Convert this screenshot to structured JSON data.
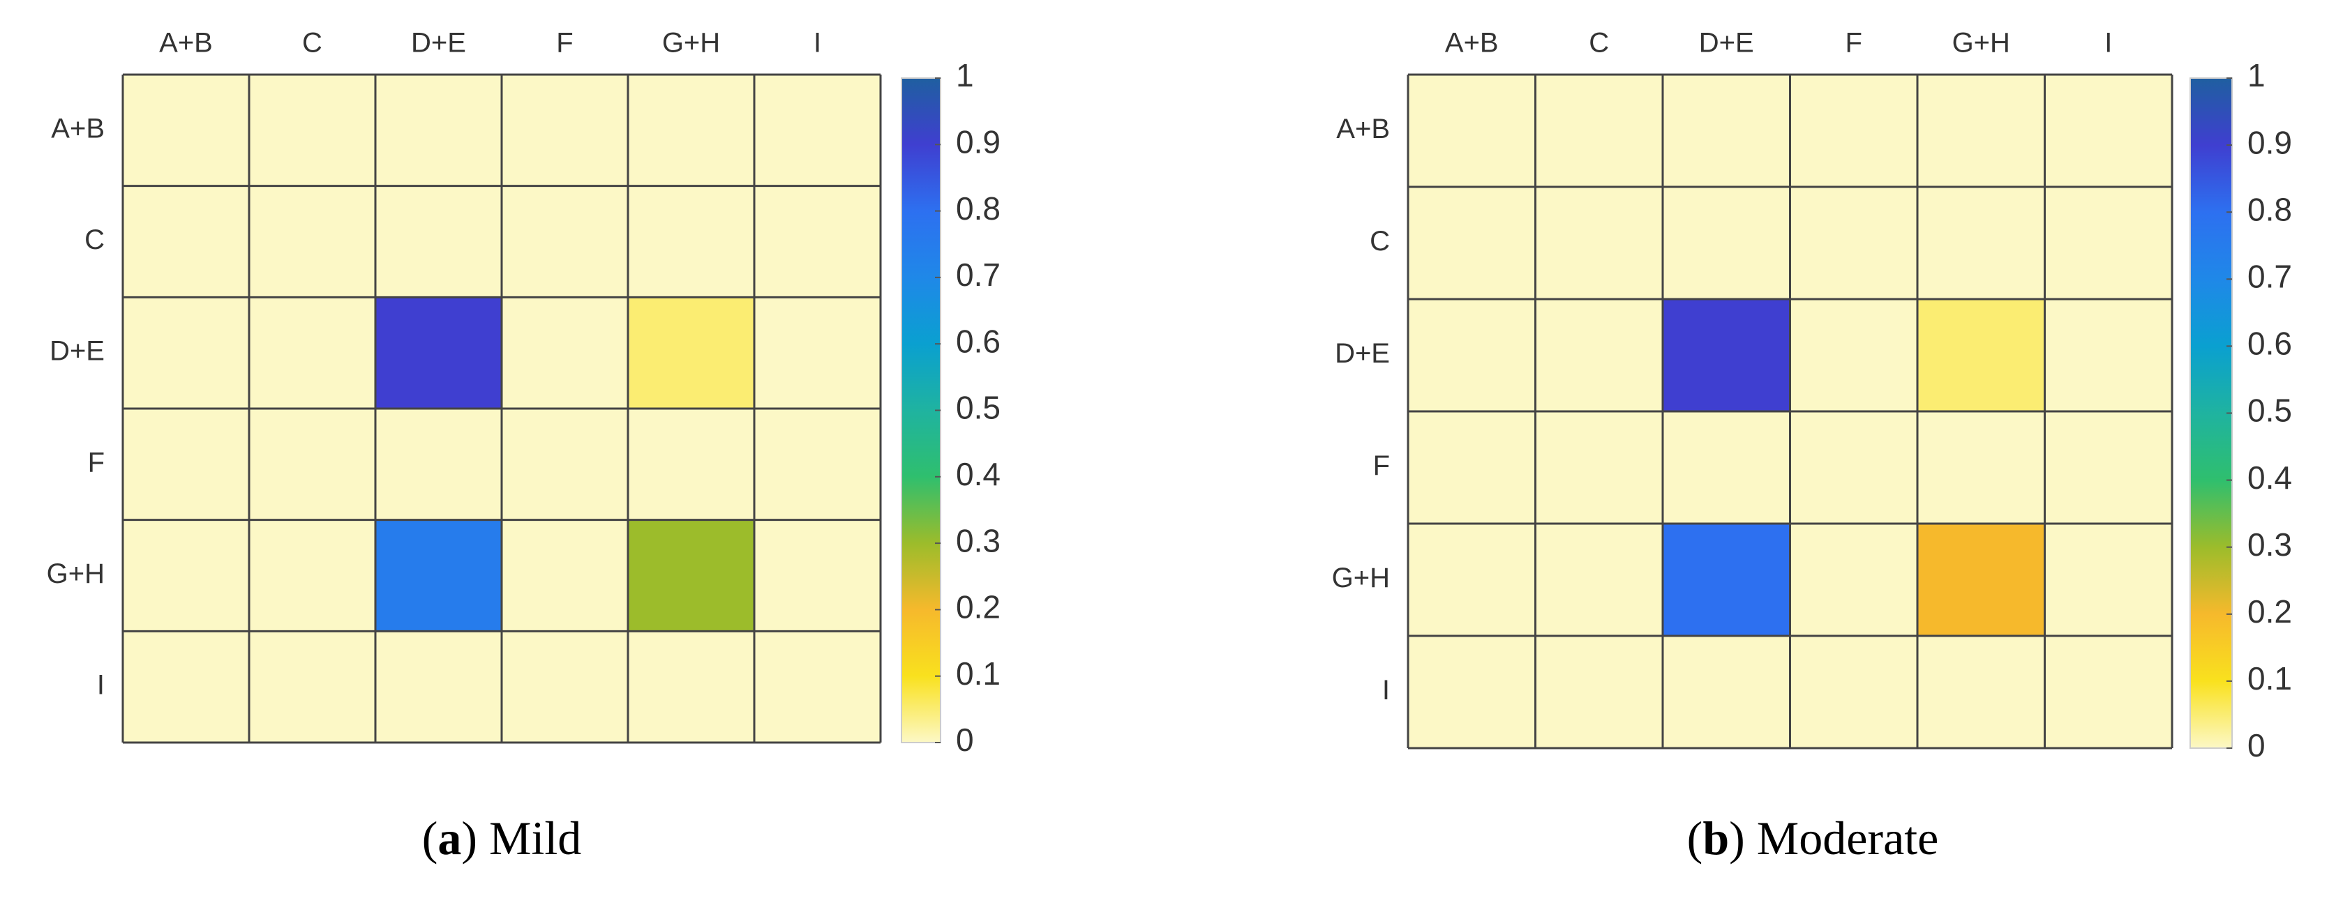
{
  "chart_data": [
    {
      "type": "heatmap",
      "x_categories": [
        "A+B",
        "C",
        "D+E",
        "F",
        "G+H",
        "I"
      ],
      "y_categories": [
        "A+B",
        "C",
        "D+E",
        "F",
        "G+H",
        "I"
      ],
      "values": [
        [
          0,
          0,
          0,
          0,
          0,
          0
        ],
        [
          0,
          0,
          0,
          0,
          0,
          0
        ],
        [
          0,
          0,
          0.9,
          0,
          0.05,
          0
        ],
        [
          0,
          0,
          0,
          0,
          0,
          0
        ],
        [
          0,
          0,
          0.75,
          0,
          0.3,
          0
        ],
        [
          0,
          0,
          0,
          0,
          0,
          0
        ]
      ],
      "colorbar": {
        "lim": [
          0,
          1
        ],
        "ticks": [
          0,
          0.1,
          0.2,
          0.3,
          0.4,
          0.5,
          0.6,
          0.7,
          0.8,
          0.9,
          1
        ]
      },
      "colormap": [
        "#fcf8c6",
        "#f9e11e",
        "#f6b92c",
        "#9cbc2b",
        "#2fbf6e",
        "#1fb3a0",
        "#0aa0d0",
        "#1f88e8",
        "#2d70f0",
        "#3f3fd0",
        "#1f5fa0"
      ],
      "caption": [
        "(",
        "a",
        ") Mild"
      ]
    },
    {
      "type": "heatmap",
      "x_categories": [
        "A+B",
        "C",
        "D+E",
        "F",
        "G+H",
        "I"
      ],
      "y_categories": [
        "A+B",
        "C",
        "D+E",
        "F",
        "G+H",
        "I"
      ],
      "values": [
        [
          0,
          0,
          0,
          0,
          0,
          0
        ],
        [
          0,
          0,
          0,
          0,
          0,
          0
        ],
        [
          0,
          0,
          0.9,
          0,
          0.05,
          0
        ],
        [
          0,
          0,
          0,
          0,
          0,
          0
        ],
        [
          0,
          0,
          0.8,
          0,
          0.2,
          0
        ],
        [
          0,
          0,
          0,
          0,
          0,
          0
        ]
      ],
      "colorbar": {
        "lim": [
          0,
          1
        ],
        "ticks": [
          0,
          0.1,
          0.2,
          0.3,
          0.4,
          0.5,
          0.6,
          0.7,
          0.8,
          0.9,
          1
        ]
      },
      "colormap": [
        "#fcf8c6",
        "#f9e11e",
        "#f6b92c",
        "#9cbc2b",
        "#2fbf6e",
        "#1fb3a0",
        "#0aa0d0",
        "#1f88e8",
        "#2d70f0",
        "#3f3fd0",
        "#1f5fa0"
      ],
      "caption": [
        "(",
        "b",
        ") Moderate"
      ]
    }
  ]
}
